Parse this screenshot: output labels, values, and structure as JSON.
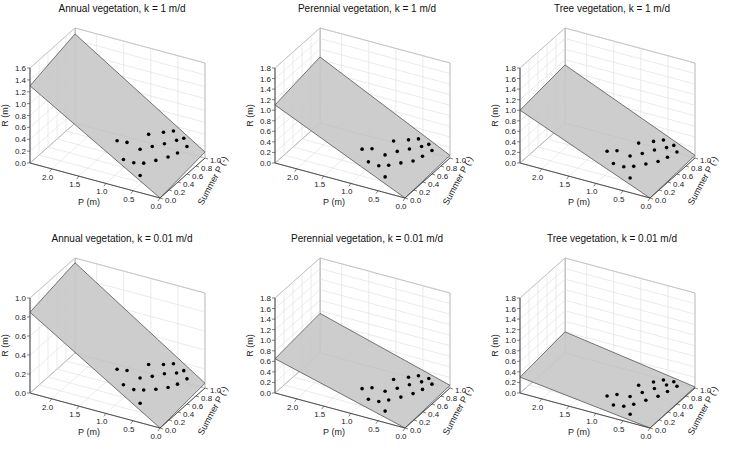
{
  "chart_data": [
    {
      "type": "scatter3d",
      "title": "Annual vegetation, k = 1 m/d",
      "x_label": "P (m)",
      "y_label": "Summer P (-)",
      "z_label": "R (m)",
      "xlim": [
        0,
        2.4
      ],
      "ylim": [
        0,
        1
      ],
      "zlim": [
        0,
        1.6
      ],
      "xticks": [
        {
          "value": 0,
          "label": "0.0"
        },
        0.5,
        {
          "value": 1,
          "label": "1.0"
        },
        1.5,
        {
          "value": 2,
          "label": "2.0"
        }
      ],
      "yticks": [
        {
          "value": 0,
          "label": "0.0"
        },
        0.2,
        0.4,
        0.6,
        0.8,
        {
          "value": 1,
          "label": "1.0"
        }
      ],
      "zticks": [
        {
          "value": 0,
          "label": "0.0"
        },
        0.2,
        0.4,
        0.6,
        0.8,
        {
          "value": 1,
          "label": "1.0"
        },
        1.2,
        1.4,
        1.6
      ],
      "grid": true,
      "plane": {
        "x": [
          0,
          2.4
        ],
        "y": [
          0,
          1
        ],
        "z": [
          [
            0,
            0.1
          ],
          [
            1.3,
            1.5
          ]
        ],
        "color": "#c8c8c8"
      },
      "points": {
        "color": "#000000",
        "marker": "circle",
        "x": [
          0.25,
          0.3,
          0.35,
          0.4,
          0.45,
          0.5,
          0.55,
          0.6,
          0.65,
          0.7,
          0.75,
          0.8,
          0.9,
          1.0,
          0.35,
          0.5,
          0.6,
          0.45
        ],
        "y": [
          0.9,
          0.75,
          0.6,
          0.85,
          0.45,
          0.7,
          0.3,
          0.55,
          0.2,
          0.4,
          0.65,
          0.15,
          0.35,
          0.25,
          0.95,
          0.9,
          0.8,
          0.1
        ],
        "z": [
          0.2,
          0.18,
          0.2,
          0.3,
          0.22,
          0.32,
          0.25,
          0.35,
          0.3,
          0.38,
          0.45,
          0.35,
          0.48,
          0.55,
          0.28,
          0.4,
          0.42,
          0.2
        ]
      }
    },
    {
      "type": "scatter3d",
      "title": "Perennial vegetation, k = 1 m/d",
      "x_label": "P (m)",
      "y_label": "Summer P (-)",
      "z_label": "R (m)",
      "xlim": [
        0,
        2.4
      ],
      "ylim": [
        0,
        1
      ],
      "zlim": [
        0,
        1.8
      ],
      "xticks": [
        {
          "value": 0,
          "label": "0.0"
        },
        0.5,
        {
          "value": 1,
          "label": "1.0"
        },
        1.5,
        {
          "value": 2,
          "label": "2.0"
        }
      ],
      "yticks": [
        {
          "value": 0,
          "label": "0.0"
        },
        0.2,
        0.4,
        0.6,
        0.8,
        {
          "value": 1,
          "label": "1.0"
        }
      ],
      "zticks": [
        {
          "value": 0,
          "label": "0.0"
        },
        0.2,
        0.4,
        0.6,
        0.8,
        {
          "value": 1,
          "label": "1.0"
        },
        1.2,
        1.4,
        1.6,
        1.8
      ],
      "grid": true,
      "plane": {
        "x": [
          0,
          2.4
        ],
        "y": [
          0,
          1
        ],
        "z": [
          [
            0,
            0.05
          ],
          [
            1.1,
            1.25
          ]
        ],
        "color": "#c8c8c8"
      },
      "points": {
        "color": "#000000",
        "marker": "circle",
        "x": [
          0.25,
          0.3,
          0.35,
          0.4,
          0.45,
          0.5,
          0.55,
          0.6,
          0.65,
          0.7,
          0.75,
          0.8,
          0.9,
          1.0,
          0.35,
          0.5,
          0.6,
          0.45
        ],
        "y": [
          0.9,
          0.75,
          0.6,
          0.85,
          0.45,
          0.7,
          0.3,
          0.55,
          0.2,
          0.4,
          0.65,
          0.15,
          0.35,
          0.25,
          0.95,
          0.9,
          0.8,
          0.1
        ],
        "z": [
          0.15,
          0.14,
          0.15,
          0.22,
          0.2,
          0.26,
          0.24,
          0.3,
          0.28,
          0.32,
          0.38,
          0.35,
          0.42,
          0.46,
          0.2,
          0.3,
          0.33,
          0.2
        ]
      }
    },
    {
      "type": "scatter3d",
      "title": "Tree vegetation, k = 1 m/d",
      "x_label": "P (m)",
      "y_label": "Summer P (-)",
      "z_label": "R (m)",
      "xlim": [
        0,
        2.4
      ],
      "ylim": [
        0,
        1
      ],
      "zlim": [
        0,
        1.8
      ],
      "xticks": [
        {
          "value": 0,
          "label": "0.0"
        },
        0.5,
        {
          "value": 1,
          "label": "1.0"
        },
        1.5,
        {
          "value": 2,
          "label": "2.0"
        }
      ],
      "yticks": [
        {
          "value": 0,
          "label": "0.0"
        },
        0.2,
        0.4,
        0.6,
        0.8,
        {
          "value": 1,
          "label": "1.0"
        }
      ],
      "zticks": [
        {
          "value": 0,
          "label": "0.0"
        },
        0.2,
        0.4,
        0.6,
        0.8,
        {
          "value": 1,
          "label": "1.0"
        },
        1.2,
        1.4,
        1.6,
        1.8
      ],
      "grid": true,
      "plane": {
        "x": [
          0,
          2.4
        ],
        "y": [
          0,
          1
        ],
        "z": [
          [
            0,
            0.05
          ],
          [
            1.0,
            1.1
          ]
        ],
        "color": "#c8c8c8"
      },
      "points": {
        "color": "#000000",
        "marker": "circle",
        "x": [
          0.25,
          0.3,
          0.35,
          0.4,
          0.45,
          0.5,
          0.55,
          0.6,
          0.65,
          0.7,
          0.75,
          0.8,
          0.9,
          1.0,
          0.35,
          0.5,
          0.6,
          0.45
        ],
        "y": [
          0.9,
          0.75,
          0.6,
          0.85,
          0.45,
          0.7,
          0.3,
          0.55,
          0.2,
          0.4,
          0.65,
          0.15,
          0.35,
          0.25,
          0.95,
          0.9,
          0.8,
          0.1
        ],
        "z": [
          0.12,
          0.12,
          0.14,
          0.2,
          0.18,
          0.24,
          0.22,
          0.26,
          0.26,
          0.3,
          0.34,
          0.32,
          0.38,
          0.42,
          0.18,
          0.28,
          0.3,
          0.18
        ]
      }
    },
    {
      "type": "scatter3d",
      "title": "Annual vegetation, k = 0.01 m/d",
      "x_label": "P (m)",
      "y_label": "Summer P (-)",
      "z_label": "R (m)",
      "xlim": [
        0,
        2.4
      ],
      "ylim": [
        0,
        1
      ],
      "zlim": [
        0,
        1.0
      ],
      "xticks": [
        {
          "value": 0,
          "label": "0.0"
        },
        0.5,
        {
          "value": 1,
          "label": "1.0"
        },
        1.5,
        {
          "value": 2,
          "label": "2.0"
        }
      ],
      "yticks": [
        {
          "value": 0,
          "label": "0.0"
        },
        0.2,
        0.4,
        0.6,
        0.8,
        {
          "value": 1,
          "label": "1.0"
        }
      ],
      "zticks": [
        {
          "value": 0,
          "label": "0.0"
        },
        0.2,
        0.4,
        0.6,
        0.8,
        {
          "value": 1,
          "label": "1.0"
        }
      ],
      "grid": true,
      "plane": {
        "x": [
          0,
          2.4
        ],
        "y": [
          0,
          1
        ],
        "z": [
          [
            0,
            0.05
          ],
          [
            0.85,
            0.95
          ]
        ],
        "color": "#c8c8c8"
      },
      "points": {
        "color": "#000000",
        "marker": "circle",
        "x": [
          0.25,
          0.3,
          0.35,
          0.4,
          0.45,
          0.5,
          0.55,
          0.6,
          0.65,
          0.7,
          0.75,
          0.8,
          0.9,
          1.0,
          0.35,
          0.5,
          0.6,
          0.45
        ],
        "y": [
          0.9,
          0.75,
          0.6,
          0.85,
          0.45,
          0.7,
          0.3,
          0.55,
          0.2,
          0.4,
          0.65,
          0.15,
          0.35,
          0.25,
          0.95,
          0.9,
          0.8,
          0.1
        ],
        "z": [
          0.1,
          0.1,
          0.12,
          0.16,
          0.15,
          0.2,
          0.19,
          0.22,
          0.22,
          0.25,
          0.28,
          0.27,
          0.32,
          0.36,
          0.15,
          0.22,
          0.24,
          0.15
        ]
      }
    },
    {
      "type": "scatter3d",
      "title": "Perennial vegetation, k = 0.01 m/d",
      "x_label": "P (m)",
      "y_label": "Summer P (-)",
      "z_label": "R (m)",
      "xlim": [
        0,
        2.4
      ],
      "ylim": [
        0,
        1
      ],
      "zlim": [
        0,
        1.8
      ],
      "xticks": [
        {
          "value": 0,
          "label": "0.0"
        },
        0.5,
        {
          "value": 1,
          "label": "1.0"
        },
        1.5,
        {
          "value": 2,
          "label": "2.0"
        }
      ],
      "yticks": [
        {
          "value": 0,
          "label": "0.0"
        },
        0.2,
        0.4,
        0.6,
        0.8,
        {
          "value": 1,
          "label": "1.0"
        }
      ],
      "zticks": [
        {
          "value": 0,
          "label": "0.0"
        },
        0.2,
        0.4,
        0.6,
        0.8,
        {
          "value": 1,
          "label": "1.0"
        },
        1.2,
        1.4,
        1.6,
        1.8
      ],
      "grid": true,
      "plane": {
        "x": [
          0,
          2.4
        ],
        "y": [
          0,
          1
        ],
        "z": [
          [
            0,
            0.05
          ],
          [
            0.65,
            0.75
          ]
        ],
        "color": "#c8c8c8"
      },
      "points": {
        "color": "#000000",
        "marker": "circle",
        "x": [
          0.25,
          0.3,
          0.35,
          0.4,
          0.45,
          0.5,
          0.55,
          0.6,
          0.65,
          0.7,
          0.75,
          0.8,
          0.9,
          1.0,
          0.35,
          0.5,
          0.6,
          0.45
        ],
        "y": [
          0.9,
          0.75,
          0.6,
          0.85,
          0.45,
          0.7,
          0.3,
          0.55,
          0.2,
          0.4,
          0.65,
          0.15,
          0.35,
          0.25,
          0.95,
          0.9,
          0.8,
          0.1
        ],
        "z": [
          0.08,
          0.08,
          0.1,
          0.12,
          0.12,
          0.15,
          0.15,
          0.17,
          0.17,
          0.2,
          0.22,
          0.21,
          0.25,
          0.28,
          0.12,
          0.17,
          0.19,
          0.12
        ]
      }
    },
    {
      "type": "scatter3d",
      "title": "Tree vegetation, k = 0.01 m/d",
      "x_label": "P (m)",
      "y_label": "Summer P (-)",
      "z_label": "R (m)",
      "xlim": [
        0,
        2.4
      ],
      "ylim": [
        0,
        1
      ],
      "zlim": [
        0,
        1.8
      ],
      "xticks": [
        {
          "value": 0,
          "label": "0.0"
        },
        0.5,
        {
          "value": 1,
          "label": "1.0"
        },
        1.5,
        {
          "value": 2,
          "label": "2.0"
        }
      ],
      "yticks": [
        {
          "value": 0,
          "label": "0.0"
        },
        0.2,
        0.4,
        0.6,
        0.8,
        {
          "value": 1,
          "label": "1.0"
        }
      ],
      "zticks": [
        {
          "value": 0,
          "label": "0.0"
        },
        0.2,
        0.4,
        0.6,
        0.8,
        {
          "value": 1,
          "label": "1.0"
        },
        1.2,
        1.4,
        1.6,
        1.8
      ],
      "grid": true,
      "plane": {
        "x": [
          0,
          2.4
        ],
        "y": [
          0,
          1
        ],
        "z": [
          [
            0,
            0.02
          ],
          [
            0.3,
            0.4
          ]
        ],
        "color": "#c8c8c8"
      },
      "points": {
        "color": "#000000",
        "marker": "circle",
        "x": [
          0.25,
          0.3,
          0.35,
          0.4,
          0.45,
          0.5,
          0.55,
          0.6,
          0.65,
          0.7,
          0.75,
          0.8,
          0.9,
          1.0,
          0.35,
          0.5,
          0.6,
          0.45
        ],
        "y": [
          0.9,
          0.75,
          0.6,
          0.85,
          0.45,
          0.7,
          0.3,
          0.55,
          0.2,
          0.4,
          0.65,
          0.15,
          0.35,
          0.25,
          0.95,
          0.9,
          0.8,
          0.1
        ],
        "z": [
          0.04,
          0.04,
          0.05,
          0.06,
          0.06,
          0.08,
          0.07,
          0.09,
          0.08,
          0.1,
          0.11,
          0.1,
          0.12,
          0.14,
          0.06,
          0.09,
          0.1,
          0.06
        ]
      }
    }
  ]
}
